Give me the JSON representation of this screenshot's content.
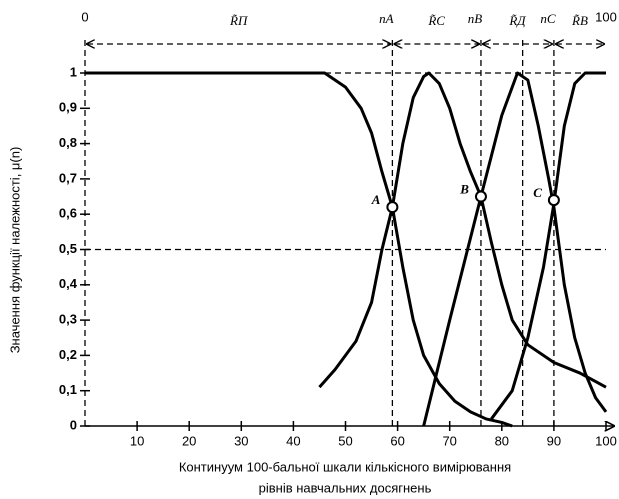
{
  "chart_data": {
    "type": "line",
    "xlabel": [
      "Континуум 100-бальної шкали кількісного вимірювання",
      "рівнів навчальних досягнень"
    ],
    "ylabel": "Значення функції належності, μ(n)",
    "xlim": [
      0,
      100
    ],
    "ylim": [
      0,
      1
    ],
    "xticks": [
      10,
      20,
      30,
      40,
      50,
      60,
      70,
      80,
      90,
      100
    ],
    "yticks": [
      {
        "value": 0,
        "label": "0"
      },
      {
        "value": 0.1,
        "label": "0,1"
      },
      {
        "value": 0.2,
        "label": "0,2"
      },
      {
        "value": 0.3,
        "label": "0,3"
      },
      {
        "value": 0.4,
        "label": "0,4"
      },
      {
        "value": 0.5,
        "label": "0,5"
      },
      {
        "value": 0.6,
        "label": "0,6"
      },
      {
        "value": 0.7,
        "label": "0,7"
      },
      {
        "value": 0.8,
        "label": "0,8"
      },
      {
        "value": 0.9,
        "label": "0,9"
      },
      {
        "value": 1,
        "label": "1"
      }
    ],
    "hlines": [
      1,
      0.5
    ],
    "vlines": [
      59,
      76,
      84,
      90
    ],
    "ends": [
      {
        "value": 0,
        "label": "0"
      },
      {
        "value": 100,
        "label": "100"
      }
    ],
    "n_labels": [
      {
        "value": 59,
        "label": "nA"
      },
      {
        "value": 76,
        "label": "nB"
      },
      {
        "value": 90,
        "label": "nC"
      }
    ],
    "ranges": [
      {
        "label": "R̃П",
        "from": 0,
        "to": 59
      },
      {
        "label": "R̃C",
        "from": 59,
        "to": 76
      },
      {
        "label": "R̃Д",
        "from": 76,
        "to": 90
      },
      {
        "label": "R̃B",
        "from": 90,
        "to": 100
      }
    ],
    "points": [
      {
        "label": "A",
        "x": 59,
        "y": 0.62
      },
      {
        "label": "B",
        "x": 76,
        "y": 0.65
      },
      {
        "label": "C",
        "x": 90,
        "y": 0.64
      }
    ],
    "series": [
      {
        "color": "#000000",
        "x": [
          0,
          46,
          50,
          53,
          55,
          57,
          59,
          61,
          63,
          65,
          68,
          71,
          74,
          77,
          80,
          82
        ],
        "values": [
          1,
          1,
          0.96,
          0.9,
          0.83,
          0.72,
          0.62,
          0.45,
          0.3,
          0.2,
          0.12,
          0.07,
          0.04,
          0.02,
          0.01,
          0
        ]
      },
      {
        "color": "#000000",
        "x": [
          45,
          48,
          52,
          55,
          57,
          59,
          61,
          63,
          65,
          66,
          68,
          70,
          72,
          74,
          76,
          78,
          80,
          82,
          85,
          90,
          95,
          100
        ],
        "values": [
          0.11,
          0.16,
          0.24,
          0.35,
          0.5,
          0.62,
          0.8,
          0.93,
          0.99,
          1,
          0.97,
          0.9,
          0.8,
          0.72,
          0.65,
          0.52,
          0.4,
          0.3,
          0.23,
          0.18,
          0.15,
          0.11
        ]
      },
      {
        "color": "#000000",
        "x": [
          65,
          70,
          76,
          80,
          83,
          85,
          87,
          89,
          90,
          92,
          94,
          96,
          98,
          100
        ],
        "values": [
          0,
          0.3,
          0.65,
          0.88,
          1,
          0.98,
          0.85,
          0.7,
          0.62,
          0.4,
          0.25,
          0.15,
          0.08,
          0.04
        ]
      },
      {
        "color": "#000000",
        "x": [
          78,
          82,
          85,
          88,
          90,
          92,
          94,
          96,
          100
        ],
        "values": [
          0.02,
          0.1,
          0.25,
          0.45,
          0.63,
          0.85,
          0.97,
          1,
          1
        ]
      }
    ]
  }
}
